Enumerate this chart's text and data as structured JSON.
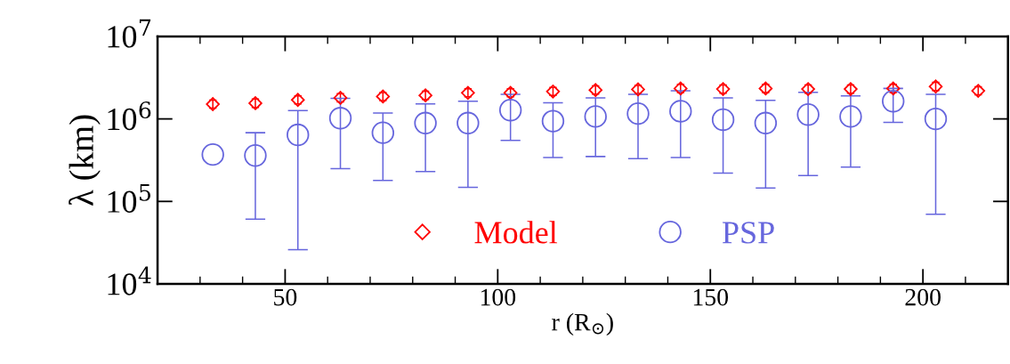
{
  "chart_data": {
    "type": "scatter",
    "xlabel": "r (R$_{⊙}$)",
    "ylabel": "λ (km)",
    "log": "y",
    "grid": false,
    "legend": "bottom",
    "xlim": [
      20,
      220
    ],
    "xticks": [
      50,
      100,
      150,
      200
    ],
    "ylim": [
      10000,
      10000000
    ],
    "yticks": [
      {
        "value": 10000,
        "label": "10$^{4}$"
      },
      {
        "value": 100000,
        "label": "10$^{5}$"
      },
      {
        "value": 1000000,
        "label": "10$^{6}$"
      },
      {
        "value": 10000000,
        "label": "10$^{7}$"
      }
    ],
    "series": [
      {
        "name": "Model",
        "color": "#ff0000",
        "marker": "diamond",
        "x": [
          33,
          43,
          53,
          63,
          73,
          83,
          93,
          103,
          113,
          123,
          133,
          143,
          153,
          163,
          173,
          183,
          193,
          203,
          213
        ],
        "values": [
          1510000,
          1550000,
          1700000,
          1800000,
          1870000,
          1930000,
          2070000,
          2070000,
          2150000,
          2240000,
          2280000,
          2340000,
          2300000,
          2340000,
          2300000,
          2300000,
          2340000,
          2470000,
          2190000
        ],
        "errors": [
          [
            1350000,
            1690000
          ],
          [
            1380000,
            1740000
          ],
          [
            1520000,
            1900000
          ],
          [
            1610000,
            2020000
          ],
          [
            1670000,
            2090000
          ],
          [
            1720000,
            2160000
          ],
          [
            1850000,
            2320000
          ],
          [
            1850000,
            2320000
          ],
          [
            1920000,
            2410000
          ],
          [
            2000000,
            2510000
          ],
          [
            2040000,
            2550000
          ],
          [
            2090000,
            2620000
          ],
          [
            2050000,
            2580000
          ],
          [
            2090000,
            2620000
          ],
          [
            2050000,
            2580000
          ],
          [
            2050000,
            2580000
          ],
          [
            2090000,
            2620000
          ],
          [
            2210000,
            2770000
          ],
          [
            1960000,
            2450000
          ]
        ]
      },
      {
        "name": "PSP",
        "color": "#6666dd",
        "marker": "circle",
        "x": [
          33,
          43,
          53,
          63,
          73,
          83,
          93,
          103,
          113,
          123,
          133,
          143,
          153,
          163,
          173,
          183,
          193,
          203
        ],
        "values": [
          370000,
          360000,
          640000,
          1020000,
          680000,
          890000,
          890000,
          1280000,
          940000,
          1070000,
          1160000,
          1240000,
          980000,
          890000,
          1130000,
          1070000,
          1640000,
          1000000
        ],
        "errors": [
          null,
          [
            61000,
            680000
          ],
          [
            26000,
            1260000
          ],
          [
            250000,
            1780000
          ],
          [
            180000,
            1180000
          ],
          [
            230000,
            1520000
          ],
          [
            148000,
            1640000
          ],
          [
            550000,
            1980000
          ],
          [
            340000,
            1570000
          ],
          [
            350000,
            1800000
          ],
          [
            330000,
            1980000
          ],
          [
            340000,
            2190000
          ],
          [
            220000,
            1800000
          ],
          [
            145000,
            1680000
          ],
          [
            206000,
            2100000
          ],
          [
            260000,
            1900000
          ],
          [
            910000,
            2340000
          ],
          [
            70000,
            1980000
          ]
        ]
      }
    ]
  }
}
